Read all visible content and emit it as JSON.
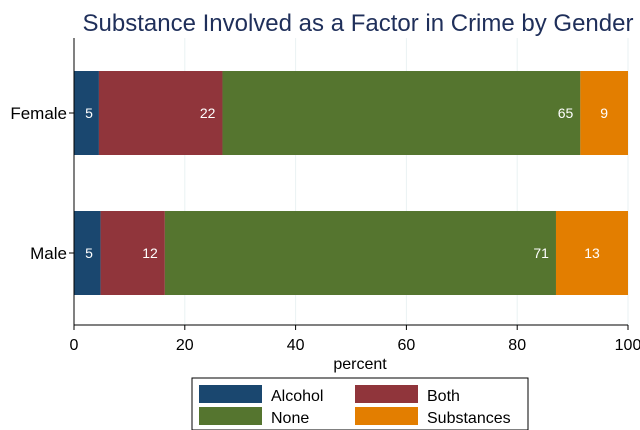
{
  "chart_data": {
    "type": "bar",
    "orientation": "horizontal",
    "stacked": true,
    "title": "Substance Involved as a Factor in Crime by Gender",
    "xlabel": "percent",
    "ylabel": "",
    "categories": [
      "Female",
      "Male"
    ],
    "xlim": [
      0,
      100
    ],
    "xticks": [
      "0",
      "20",
      "40",
      "60",
      "80",
      "100"
    ],
    "grid": true,
    "legend_position": "bottom",
    "series": [
      {
        "name": "Alcohol",
        "values": [
          4.5,
          4.8
        ],
        "labels": [
          "5",
          "5"
        ],
        "color": "#1a476f"
      },
      {
        "name": "Both",
        "values": [
          22.3,
          11.6
        ],
        "labels": [
          "22",
          "12"
        ],
        "color": "#90353b"
      },
      {
        "name": "None",
        "values": [
          64.6,
          70.6
        ],
        "labels": [
          "65",
          "71"
        ],
        "color": "#55752f"
      },
      {
        "name": "Substances",
        "values": [
          8.6,
          13.0
        ],
        "labels": [
          "9",
          "13"
        ],
        "color": "#e37e00"
      }
    ]
  }
}
